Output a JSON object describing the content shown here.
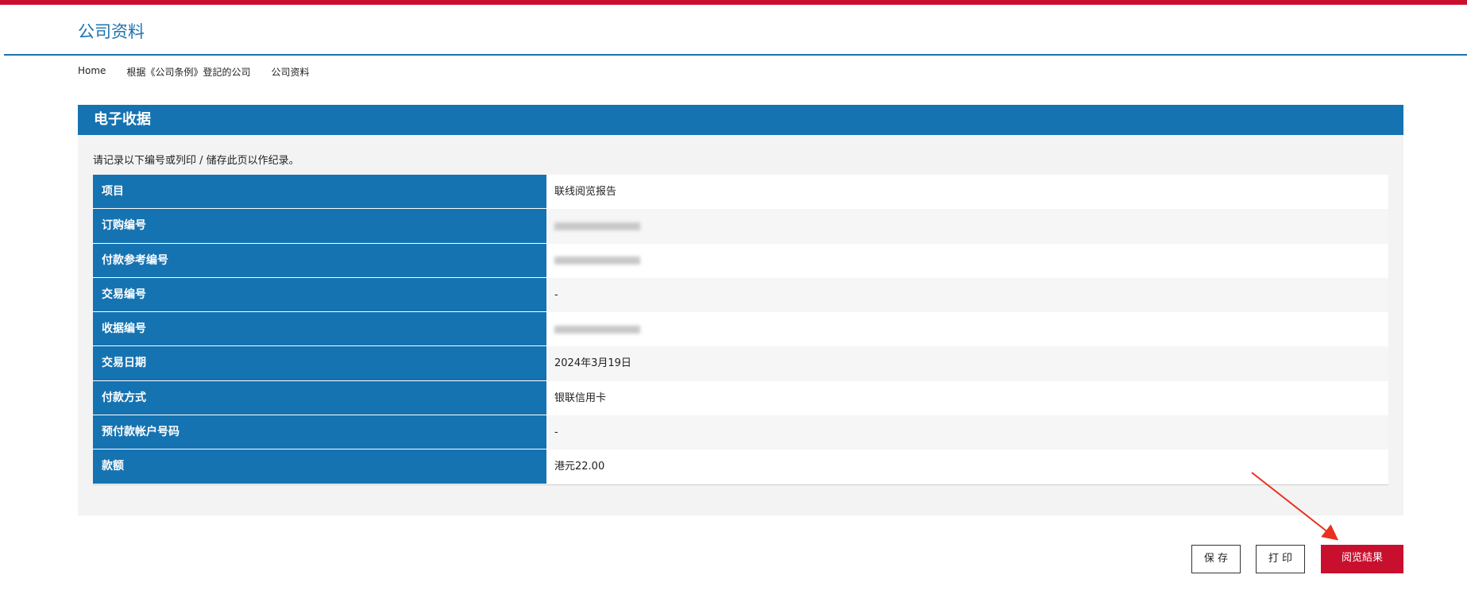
{
  "header": {
    "title": "公司资料"
  },
  "breadcrumb": [
    "Home",
    "根据《公司条例》登記的公司",
    "公司资料"
  ],
  "panel": {
    "title": "电子收据",
    "note": "请记录以下编号或列印 / 储存此页以作纪录。"
  },
  "table": {
    "rows": [
      {
        "label": "项目",
        "value": "联线阅览报告"
      },
      {
        "label": "订购编号"
      },
      {
        "label": "付款参考编号"
      },
      {
        "label": "交易编号",
        "value": "-"
      },
      {
        "label": "收据编号"
      },
      {
        "label": "交易日期",
        "value": "2024年3月19日"
      },
      {
        "label": "付款方式",
        "value": "银联信用卡"
      },
      {
        "label": "预付款帐户号码",
        "value": "-"
      },
      {
        "label": "款额",
        "value": "港元22.00"
      }
    ]
  },
  "buttons": [
    "保 存",
    "打 印",
    "阅览結果"
  ]
}
